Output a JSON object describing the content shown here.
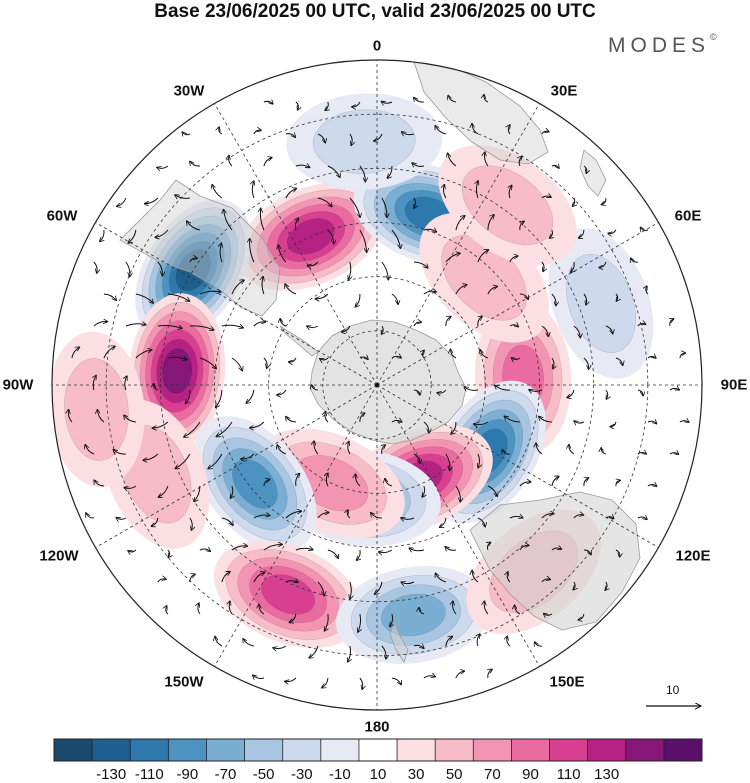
{
  "title": "Base 23/06/2025 00 UTC, valid 23/06/2025 00 UTC",
  "brand": {
    "name": "MODES",
    "mark": "©"
  },
  "longitude_labels": [
    "0",
    "30E",
    "60E",
    "90E",
    "120E",
    "150E",
    "180",
    "150W",
    "120W",
    "90W",
    "60W",
    "30W"
  ],
  "reference_vector": {
    "label": "10",
    "magnitude": 10
  },
  "colorbar": {
    "ticks": [
      "-130",
      "-110",
      "-90",
      "-70",
      "-50",
      "-30",
      "-10",
      "10",
      "30",
      "50",
      "70",
      "90",
      "110",
      "130"
    ],
    "colors": [
      "#1a4a6e",
      "#1f5f8f",
      "#2d78ad",
      "#4d93c2",
      "#7aaed3",
      "#a8c6e2",
      "#cdd9ec",
      "#e7e9f4",
      "#ffffff",
      "#fbdfe2",
      "#f8bcc8",
      "#f394b2",
      "#ea6ba0",
      "#d83f90",
      "#b52283",
      "#871679",
      "#5b0f6a"
    ]
  },
  "anomaly_centers": [
    {
      "lon": -24,
      "colat": 30,
      "value": 110
    },
    {
      "lon": 17,
      "colat": 33,
      "value": -110
    },
    {
      "lon": -58,
      "colat": 40,
      "value": -130
    },
    {
      "lon": 87,
      "colat": 27,
      "value": 70
    },
    {
      "lon": -86,
      "colat": 37,
      "value": 130
    },
    {
      "lon": 121,
      "colat": 24,
      "value": -110
    },
    {
      "lon": 156,
      "colat": 19,
      "value": 110
    },
    {
      "lon": -173,
      "colat": 21,
      "value": -70
    },
    {
      "lon": -155,
      "colat": 20,
      "value": 50
    },
    {
      "lon": -129,
      "colat": 29,
      "value": -90
    },
    {
      "lon": -157,
      "colat": 42,
      "value": 90
    },
    {
      "lon": 171,
      "colat": 43,
      "value": -70
    },
    {
      "lon": 45,
      "colat": 28,
      "value": 30
    },
    {
      "lon": 70,
      "colat": 44,
      "value": -30
    },
    {
      "lon": 36,
      "colat": 41,
      "value": 30
    },
    {
      "lon": -112,
      "colat": 44,
      "value": 30
    },
    {
      "lon": -95,
      "colat": 52,
      "value": 30
    },
    {
      "lon": 140,
      "colat": 45,
      "value": 30
    },
    {
      "lon": -3,
      "colat": 45,
      "value": -30
    }
  ]
}
